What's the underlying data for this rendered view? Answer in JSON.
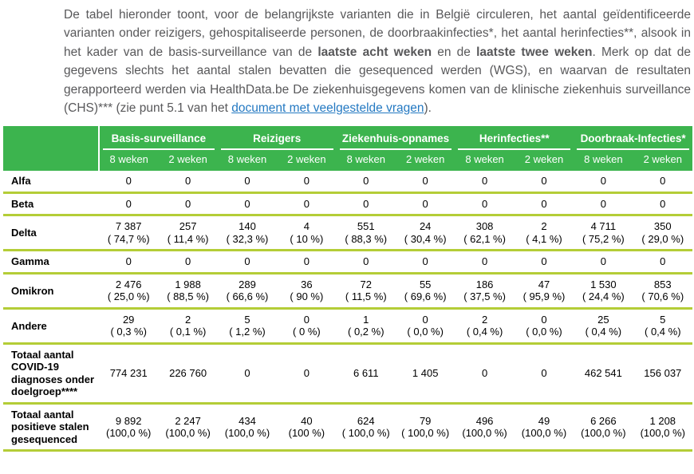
{
  "intro": {
    "part1": "De tabel hieronder toont, voor de belangrijkste varianten die in België circuleren, het aantal geïdentificeerde varianten onder reizigers, gehospitaliseerde personen, de doorbraakinfecties*, het aantal herinfecties**, alsook in het kader van de basis-surveillance van de ",
    "bold1": "laatste acht weken",
    "part2": " en de ",
    "bold2": "laatste twee weken",
    "part3": ". Merk op dat de gegevens slechts het aantal stalen bevatten die gesequenced werden (WGS), en waarvan de resultaten gerapporteerd werden via HealthData.be De ziekenhuisgegevens komen van de klinische ziekenhuis surveillance (CHS)*** (zie punt 5.1 van het ",
    "link_text": "document met veelgestelde vragen",
    "part4": ")."
  },
  "table": {
    "group_labels": [
      "Basis-surveillance",
      "Reizigers",
      "Ziekenhuis-opnames",
      "Herinfecties**",
      "Doorbraak-Infecties*"
    ],
    "subheaders": [
      "8 weken",
      "2 weken"
    ],
    "rows": [
      {
        "label": "Alfa",
        "cells": [
          [
            "0"
          ],
          [
            "0"
          ],
          [
            "0"
          ],
          [
            "0"
          ],
          [
            "0"
          ],
          [
            "0"
          ],
          [
            "0"
          ],
          [
            "0"
          ],
          [
            "0"
          ],
          [
            "0"
          ]
        ]
      },
      {
        "label": "Beta",
        "cells": [
          [
            "0"
          ],
          [
            "0"
          ],
          [
            "0"
          ],
          [
            "0"
          ],
          [
            "0"
          ],
          [
            "0"
          ],
          [
            "0"
          ],
          [
            "0"
          ],
          [
            "0"
          ],
          [
            "0"
          ]
        ]
      },
      {
        "label": "Delta",
        "cells": [
          [
            "7 387",
            "( 74,7 %)"
          ],
          [
            "257",
            "( 11,4 %)"
          ],
          [
            "140",
            "( 32,3 %)"
          ],
          [
            "4",
            "( 10 %)"
          ],
          [
            "551",
            "( 88,3 %)"
          ],
          [
            "24",
            "( 30,4 %)"
          ],
          [
            "308",
            "( 62,1 %)"
          ],
          [
            "2",
            "( 4,1 %)"
          ],
          [
            "4 711",
            "( 75,2 %)"
          ],
          [
            "350",
            "( 29,0 %)"
          ]
        ]
      },
      {
        "label": "Gamma",
        "cells": [
          [
            "0"
          ],
          [
            "0"
          ],
          [
            "0"
          ],
          [
            "0"
          ],
          [
            "0"
          ],
          [
            "0"
          ],
          [
            "0"
          ],
          [
            "0"
          ],
          [
            "0"
          ],
          [
            "0"
          ]
        ]
      },
      {
        "label": "Omikron",
        "cells": [
          [
            "2 476",
            "( 25,0 %)"
          ],
          [
            "1 988",
            "( 88,5 %)"
          ],
          [
            "289",
            "( 66,6 %)"
          ],
          [
            "36",
            "( 90 %)"
          ],
          [
            "72",
            "( 11,5 %)"
          ],
          [
            "55",
            "( 69,6 %)"
          ],
          [
            "186",
            "( 37,5 %)"
          ],
          [
            "47",
            "( 95,9 %)"
          ],
          [
            "1 530",
            "( 24,4 %)"
          ],
          [
            "853",
            "( 70,6 %)"
          ]
        ]
      },
      {
        "label": "Andere",
        "cells": [
          [
            "29",
            "( 0,3 %)"
          ],
          [
            "2",
            "( 0,1 %)"
          ],
          [
            "5",
            "( 1,2 %)"
          ],
          [
            "0",
            "( 0 %)"
          ],
          [
            "1",
            "( 0,2 %)"
          ],
          [
            "0",
            "( 0,0 %)"
          ],
          [
            "2",
            "( 0,4 %)"
          ],
          [
            "0",
            "( 0,0 %)"
          ],
          [
            "25",
            "( 0,4 %)"
          ],
          [
            "5",
            "( 0,4 %)"
          ]
        ]
      },
      {
        "label": "Totaal aantal COVID-19 diagnoses onder doelgroep****",
        "cells": [
          [
            "774 231"
          ],
          [
            "226 760"
          ],
          [
            "0"
          ],
          [
            "0"
          ],
          [
            "6 611"
          ],
          [
            "1 405"
          ],
          [
            "0"
          ],
          [
            "0"
          ],
          [
            "462 541"
          ],
          [
            "156 037"
          ]
        ]
      },
      {
        "label": "Totaal aantal positieve stalen gesequenced",
        "cells": [
          [
            "9 892",
            "(100,0 %)"
          ],
          [
            "2 247",
            "(100,0 %)"
          ],
          [
            "434",
            "(100,0 %)"
          ],
          [
            "40",
            "(100 %)"
          ],
          [
            "624",
            "( 100,0 %)"
          ],
          [
            "79",
            "( 100,0 %)"
          ],
          [
            "496",
            "(100,0 %)"
          ],
          [
            "49",
            "(100,0 %)"
          ],
          [
            "6 266",
            "(100,0 %)"
          ],
          [
            "1 208",
            "(100,0 %)"
          ]
        ]
      }
    ]
  },
  "colors": {
    "header_green": "#3cb44e",
    "divider_green": "#b4cd37",
    "link_blue": "#2479c2",
    "paragraph_text": "#58585a"
  }
}
